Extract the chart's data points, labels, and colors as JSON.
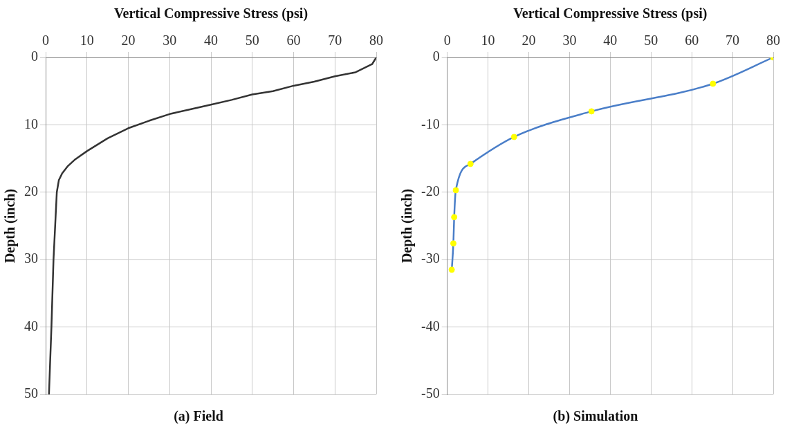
{
  "chart_data": [
    {
      "type": "line",
      "xlabel": "Vertical Compressive Stress (psi)",
      "ylabel": "Depth (inch)",
      "annotations": [
        "(a) Field"
      ],
      "xlim": [
        0,
        80
      ],
      "xticks": [
        0,
        10,
        20,
        30,
        40,
        50,
        60,
        70,
        80
      ],
      "ylim": [
        50,
        0
      ],
      "yticks": [
        0,
        10,
        20,
        30,
        40,
        50
      ],
      "grid": true,
      "marker": "none",
      "series": [
        {
          "color": "#333333",
          "x": [
            80,
            79,
            75,
            70,
            65,
            60,
            55,
            50,
            45,
            40,
            35,
            30,
            25,
            20,
            15,
            10,
            7,
            5.4,
            4,
            3.2,
            2.7,
            1.9,
            1.4,
            0.8
          ],
          "values": [
            0,
            1,
            2.2,
            2.8,
            3.6,
            4.2,
            5,
            5.5,
            6.3,
            7,
            7.7,
            8.4,
            9.4,
            10.5,
            12,
            13.9,
            15.2,
            16.1,
            17.2,
            18.2,
            20,
            30,
            40,
            50
          ]
        }
      ]
    },
    {
      "type": "line",
      "xlabel": "Vertical Compressive Stress (psi)",
      "ylabel": "Depth (inch)",
      "annotations": [
        "(b) Simulation"
      ],
      "xlim": [
        0,
        80
      ],
      "xticks": [
        0,
        10,
        20,
        30,
        40,
        50,
        60,
        70,
        80
      ],
      "ylim": [
        -50,
        0
      ],
      "yticks": [
        -50,
        -40,
        -30,
        -20,
        -10,
        0
      ],
      "grid": true,
      "marker": "circle",
      "series": [
        {
          "color": "#4a7ec8",
          "colors": [
            "#ffff00",
            "#ffff00",
            "#ffff00",
            "#ffff00",
            "#ffff00",
            "#ffff00",
            "#ffff00",
            "#ffff00",
            "#ffff00"
          ],
          "x": [
            1.1,
            1.5,
            1.7,
            2.1,
            5.7,
            16.4,
            35.4,
            65.2,
            80
          ],
          "values": [
            -31.5,
            -27.6,
            -23.7,
            -19.7,
            -15.8,
            -11.8,
            -8,
            -3.9,
            0
          ]
        }
      ]
    }
  ]
}
